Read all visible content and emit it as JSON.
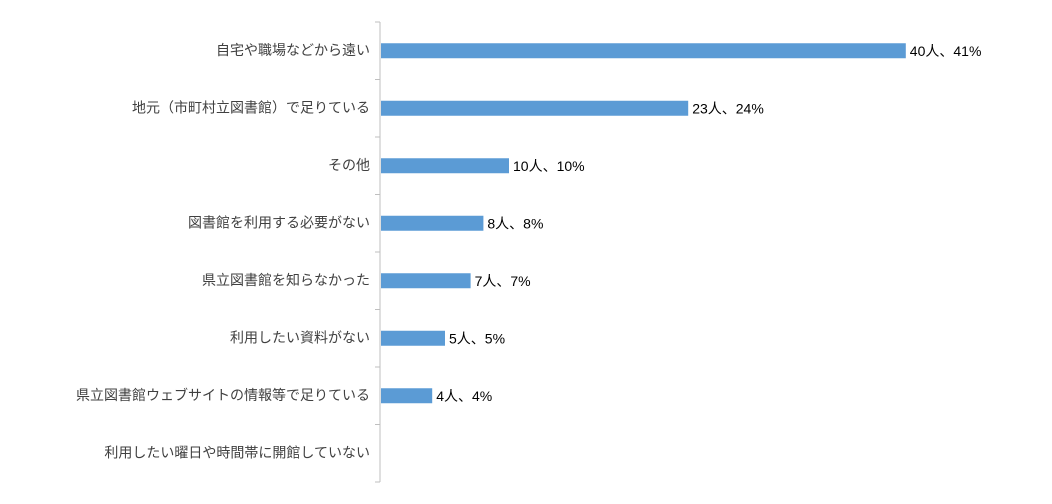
{
  "chart_data": {
    "type": "bar",
    "orientation": "horizontal",
    "categories": [
      "自宅や職場などから遠い",
      "地元（市町村立図書館）で足りている",
      "その他",
      "図書館を利用する必要がない",
      "県立図書館を知らなかった",
      "利用したい資料がない",
      "県立図書館ウェブサイトの情報等で足りている",
      "利用したい曜日や時間帯に開館していない"
    ],
    "values": [
      41,
      24,
      10,
      8,
      7,
      5,
      4,
      0
    ],
    "data_labels": [
      "40人、41%",
      "23人、24%",
      "10人、10%",
      "8人、8%",
      "7人、7%",
      "5人、5%",
      "4人、4%",
      ""
    ],
    "xlim": [
      0,
      45
    ],
    "grid": false,
    "bar_color": "#5b9bd5"
  }
}
